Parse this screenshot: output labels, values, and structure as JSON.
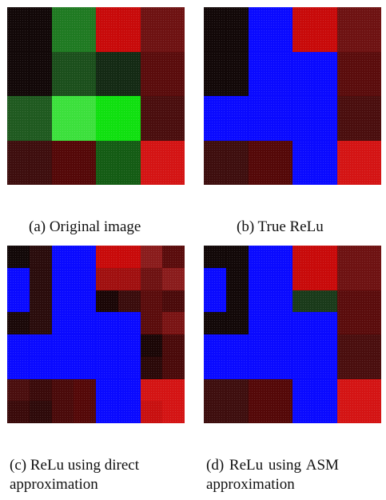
{
  "figures": [
    {
      "caption_lines": [
        "(a) Original image"
      ],
      "grid": [
        [
          "#120808",
          "#120808",
          "#1f7a22",
          "#1f7a22",
          "#c80a0a",
          "#c80a0a",
          "#6e1212",
          "#6e1212"
        ],
        [
          "#120808",
          "#120808",
          "#1f7a22",
          "#1f7a22",
          "#c80a0a",
          "#c80a0a",
          "#6e1212",
          "#6e1212"
        ],
        [
          "#120808",
          "#120808",
          "#1b4f1c",
          "#1b4f1c",
          "#142a14",
          "#142a14",
          "#5a0c0c",
          "#5a0c0c"
        ],
        [
          "#120808",
          "#120808",
          "#1b4f1c",
          "#1b4f1c",
          "#142a14",
          "#142a14",
          "#5a0c0c",
          "#5a0c0c"
        ],
        [
          "#1f5a20",
          "#1f5a20",
          "#3ce03c",
          "#3ce03c",
          "#10e010",
          "#10e010",
          "#4a0e0e",
          "#4a0e0e"
        ],
        [
          "#1f5a20",
          "#1f5a20",
          "#3ce03c",
          "#3ce03c",
          "#10e010",
          "#10e010",
          "#4a0e0e",
          "#4a0e0e"
        ],
        [
          "#3e0e0e",
          "#3e0e0e",
          "#540808",
          "#540808",
          "#145c14",
          "#145c14",
          "#d41414",
          "#d41414"
        ],
        [
          "#3e0e0e",
          "#3e0e0e",
          "#540808",
          "#540808",
          "#145c14",
          "#145c14",
          "#d41414",
          "#d41414"
        ]
      ]
    },
    {
      "caption_lines": [
        "(b) True ReLu"
      ],
      "grid": [
        [
          "#120808",
          "#120808",
          "#0a0aff",
          "#0a0aff",
          "#c80a0a",
          "#c80a0a",
          "#6e1212",
          "#6e1212"
        ],
        [
          "#120808",
          "#120808",
          "#0a0aff",
          "#0a0aff",
          "#c80a0a",
          "#c80a0a",
          "#6e1212",
          "#6e1212"
        ],
        [
          "#120808",
          "#120808",
          "#0a0aff",
          "#0a0aff",
          "#0a0aff",
          "#0a0aff",
          "#5a0c0c",
          "#5a0c0c"
        ],
        [
          "#120808",
          "#120808",
          "#0a0aff",
          "#0a0aff",
          "#0a0aff",
          "#0a0aff",
          "#5a0c0c",
          "#5a0c0c"
        ],
        [
          "#0a0aff",
          "#0a0aff",
          "#0a0aff",
          "#0a0aff",
          "#0a0aff",
          "#0a0aff",
          "#4a0e0e",
          "#4a0e0e"
        ],
        [
          "#0a0aff",
          "#0a0aff",
          "#0a0aff",
          "#0a0aff",
          "#0a0aff",
          "#0a0aff",
          "#4a0e0e",
          "#4a0e0e"
        ],
        [
          "#3e0e0e",
          "#3e0e0e",
          "#540808",
          "#540808",
          "#0a0aff",
          "#0a0aff",
          "#d41414",
          "#d41414"
        ],
        [
          "#3e0e0e",
          "#3e0e0e",
          "#540808",
          "#540808",
          "#0a0aff",
          "#0a0aff",
          "#d41414",
          "#d41414"
        ]
      ]
    },
    {
      "caption_lines": [
        "(c) ReLu using direct",
        "approximation"
      ],
      "grid": [
        [
          "#120808",
          "#2a0c0c",
          "#0a0aff",
          "#0a0aff",
          "#c80a0a",
          "#c80a0a",
          "#8a1c1c",
          "#5a0c0c"
        ],
        [
          "#0a0aff",
          "#2a0c0c",
          "#0a0aff",
          "#0a0aff",
          "#a01010",
          "#a01010",
          "#6e1212",
          "#8a1c1c"
        ],
        [
          "#0a0aff",
          "#2a0c0c",
          "#0a0aff",
          "#0a0aff",
          "#1a0606",
          "#3a0c0c",
          "#5a0c0c",
          "#4a0a0a"
        ],
        [
          "#1a0808",
          "#2a0c0c",
          "#0a0aff",
          "#0a0aff",
          "#0a0aff",
          "#0a0aff",
          "#5a0c0c",
          "#7a1414"
        ],
        [
          "#0a0aff",
          "#0a0aff",
          "#0a0aff",
          "#0a0aff",
          "#0a0aff",
          "#0a0aff",
          "#1a0606",
          "#4a0a0a"
        ],
        [
          "#0a0aff",
          "#0a0aff",
          "#0a0aff",
          "#0a0aff",
          "#0a0aff",
          "#0a0aff",
          "#2a0808",
          "#4a0a0a"
        ],
        [
          "#4a0e0e",
          "#3a0a0a",
          "#4a0a0a",
          "#540808",
          "#0a0aff",
          "#0a0aff",
          "#d41414",
          "#d41414"
        ],
        [
          "#3a0a0a",
          "#2e0a0a",
          "#4a0a0a",
          "#540808",
          "#0a0aff",
          "#0a0aff",
          "#c81010",
          "#d41414"
        ]
      ]
    },
    {
      "caption_lines": [
        "(d) ReLu using ASM",
        "approximation"
      ],
      "grid": [
        [
          "#120808",
          "#120808",
          "#0a0aff",
          "#0a0aff",
          "#c80a0a",
          "#c80a0a",
          "#6e1212",
          "#6e1212"
        ],
        [
          "#0a0aff",
          "#120808",
          "#0a0aff",
          "#0a0aff",
          "#c80a0a",
          "#c80a0a",
          "#6e1212",
          "#6e1212"
        ],
        [
          "#0a0aff",
          "#120808",
          "#0a0aff",
          "#0a0aff",
          "#1a3a1a",
          "#1a3a1a",
          "#5a0c0c",
          "#5a0c0c"
        ],
        [
          "#120808",
          "#120808",
          "#0a0aff",
          "#0a0aff",
          "#0a0aff",
          "#0a0aff",
          "#5a0c0c",
          "#5a0c0c"
        ],
        [
          "#0a0aff",
          "#0a0aff",
          "#0a0aff",
          "#0a0aff",
          "#0a0aff",
          "#0a0aff",
          "#4a0e0e",
          "#4a0e0e"
        ],
        [
          "#0a0aff",
          "#0a0aff",
          "#0a0aff",
          "#0a0aff",
          "#0a0aff",
          "#0a0aff",
          "#4a0e0e",
          "#4a0e0e"
        ],
        [
          "#3e0e0e",
          "#3e0e0e",
          "#540808",
          "#540808",
          "#0a0aff",
          "#0a0aff",
          "#d41414",
          "#d41414"
        ],
        [
          "#3e0e0e",
          "#3e0e0e",
          "#540808",
          "#540808",
          "#0a0aff",
          "#0a0aff",
          "#d41414",
          "#d41414"
        ]
      ]
    }
  ]
}
